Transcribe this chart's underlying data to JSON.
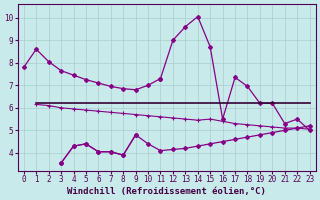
{
  "line1_x": [
    0,
    1,
    2,
    3,
    4,
    5,
    6,
    7,
    8,
    9,
    10,
    11
  ],
  "line1_y": [
    7.8,
    8.6,
    8.05,
    7.65,
    7.45,
    7.25,
    7.1,
    6.95,
    6.85,
    6.8,
    7.0,
    7.3
  ],
  "line2_x": [
    11,
    12,
    13,
    14,
    15,
    16,
    17,
    18,
    19,
    20,
    21,
    22,
    23
  ],
  "line2_y": [
    7.3,
    9.0,
    9.6,
    10.05,
    8.7,
    5.5,
    7.35,
    6.95,
    6.2,
    6.2,
    5.3,
    5.5,
    5.0
  ],
  "line3_x": [
    1,
    23
  ],
  "line3_y": [
    6.2,
    6.2
  ],
  "line4_x": [
    1,
    2,
    3,
    4,
    5,
    6,
    7,
    8,
    9,
    10,
    11,
    12,
    13,
    14,
    15,
    16,
    17,
    18,
    19,
    20,
    21,
    22,
    23
  ],
  "line4_y": [
    6.15,
    6.1,
    6.0,
    5.95,
    5.9,
    5.85,
    5.8,
    5.75,
    5.7,
    5.65,
    5.6,
    5.55,
    5.5,
    5.45,
    5.5,
    5.4,
    5.3,
    5.25,
    5.2,
    5.15,
    5.1,
    5.1,
    5.05
  ],
  "line5_x": [
    3,
    4,
    5,
    6,
    7,
    8,
    9,
    10,
    11,
    12,
    13,
    14,
    15,
    16,
    17,
    18,
    19,
    20,
    21,
    22,
    23
  ],
  "line5_y": [
    3.55,
    4.3,
    4.4,
    4.05,
    4.05,
    3.9,
    4.8,
    4.4,
    4.1,
    4.15,
    4.2,
    4.3,
    4.4,
    4.5,
    4.6,
    4.7,
    4.8,
    4.9,
    5.0,
    5.1,
    5.2
  ],
  "line5b_x": [
    3,
    4,
    5,
    6,
    7,
    8,
    9
  ],
  "line5b_y": [
    3.55,
    4.3,
    4.4,
    4.05,
    4.05,
    3.9,
    4.8
  ],
  "line_color": "#880088",
  "bg_color": "#c8eaea",
  "grid_color": "#aacccc",
  "xlabel": "Windchill (Refroidissement éolien,°C)",
  "xlim": [
    -0.5,
    23.5
  ],
  "ylim": [
    3.2,
    10.6
  ],
  "yticks": [
    4,
    5,
    6,
    7,
    8,
    9,
    10
  ],
  "xticks": [
    0,
    1,
    2,
    3,
    4,
    5,
    6,
    7,
    8,
    9,
    10,
    11,
    12,
    13,
    14,
    15,
    16,
    17,
    18,
    19,
    20,
    21,
    22,
    23
  ],
  "tick_fontsize": 5.5,
  "xlabel_fontsize": 6.5
}
